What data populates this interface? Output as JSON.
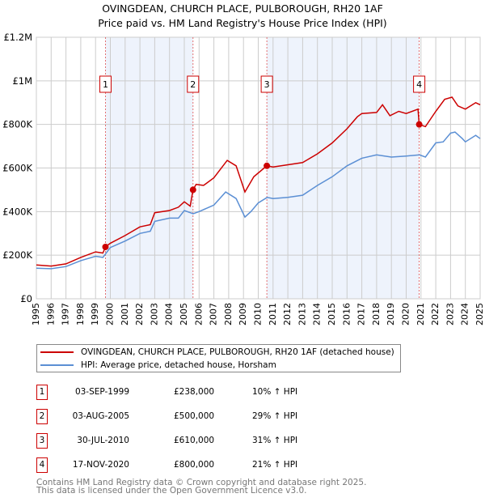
{
  "chart_data": {
    "type": "line",
    "title": "OVINGDEAN, CHURCH PLACE, PULBOROUGH, RH20 1AF",
    "subtitle": "Price paid vs. HM Land Registry's House Price Index (HPI)",
    "xlim": [
      1995,
      2025
    ],
    "ylim": [
      0,
      1200000
    ],
    "grid": true,
    "x_ticks": [
      "1995",
      "1996",
      "1997",
      "1998",
      "1999",
      "2000",
      "2001",
      "2002",
      "2003",
      "2004",
      "2005",
      "2006",
      "2007",
      "2008",
      "2009",
      "2010",
      "2011",
      "2012",
      "2013",
      "2014",
      "2015",
      "2016",
      "2017",
      "2018",
      "2019",
      "2020",
      "2021",
      "2022",
      "2023",
      "2024",
      "2025"
    ],
    "y_ticks": [
      {
        "value": 0,
        "label": "£0"
      },
      {
        "value": 200000,
        "label": "£200K"
      },
      {
        "value": 400000,
        "label": "£400K"
      },
      {
        "value": 600000,
        "label": "£600K"
      },
      {
        "value": 800000,
        "label": "£800K"
      },
      {
        "value": 1000000,
        "label": "£1M"
      },
      {
        "value": 1200000,
        "label": "£1.2M"
      }
    ],
    "shaded_ranges": [
      [
        1999.67,
        2005.59
      ],
      [
        2010.58,
        2020.88
      ]
    ],
    "series": [
      {
        "name": "OVINGDEAN, CHURCH PLACE, PULBOROUGH, RH20 1AF (detached house)",
        "color": "#cc0000",
        "x": [
          1995,
          1996,
          1997,
          1998,
          1999,
          1999.5,
          1999.67,
          2000,
          2001,
          2002,
          2002.7,
          2003,
          2004,
          2004.6,
          2005,
          2005.4,
          2005.59,
          2005.8,
          2006.3,
          2007,
          2007.9,
          2008.5,
          2009.1,
          2009.7,
          2010.4,
          2010.58,
          2011,
          2012,
          2013,
          2014,
          2015,
          2016,
          2016.7,
          2017,
          2018,
          2018.4,
          2018.9,
          2019.5,
          2020,
          2020.8,
          2020.88,
          2021.3,
          2022,
          2022.6,
          2023.1,
          2023.5,
          2024,
          2024.7,
          2025
        ],
        "y": [
          155000,
          150000,
          160000,
          190000,
          215000,
          210000,
          238000,
          255000,
          290000,
          330000,
          340000,
          395000,
          405000,
          420000,
          445000,
          425000,
          500000,
          525000,
          520000,
          555000,
          635000,
          610000,
          490000,
          560000,
          600000,
          610000,
          605000,
          615000,
          625000,
          665000,
          715000,
          780000,
          835000,
          850000,
          855000,
          890000,
          840000,
          860000,
          850000,
          870000,
          800000,
          790000,
          860000,
          915000,
          925000,
          885000,
          870000,
          900000,
          890000
        ]
      },
      {
        "name": "HPI: Average price, detached house, Horsham",
        "color": "#5b8fd4",
        "x": [
          1995,
          1996,
          1997,
          1998,
          1999,
          1999.5,
          2000,
          2001,
          2002,
          2002.7,
          2003,
          2004,
          2004.6,
          2005,
          2005.6,
          2006,
          2007,
          2007.8,
          2008.5,
          2009.1,
          2009.5,
          2010,
          2010.6,
          2011,
          2012,
          2013,
          2014,
          2015,
          2016,
          2017,
          2018,
          2019,
          2020,
          2020.9,
          2021.3,
          2022,
          2022.5,
          2023,
          2023.3,
          2023.8,
          2024,
          2024.7,
          2025
        ],
        "y": [
          140000,
          138000,
          148000,
          175000,
          195000,
          190000,
          235000,
          265000,
          300000,
          310000,
          355000,
          370000,
          370000,
          405000,
          390000,
          400000,
          430000,
          490000,
          460000,
          375000,
          400000,
          440000,
          465000,
          460000,
          465000,
          475000,
          520000,
          560000,
          610000,
          645000,
          660000,
          650000,
          655000,
          660000,
          650000,
          715000,
          720000,
          760000,
          765000,
          735000,
          720000,
          750000,
          735000
        ]
      }
    ],
    "sales": [
      {
        "id": "1",
        "x": 1999.67,
        "y": 238000,
        "date": "03-SEP-1999",
        "price": "£238,000",
        "hpi": "10% ↑ HPI"
      },
      {
        "id": "2",
        "x": 2005.59,
        "y": 500000,
        "date": "03-AUG-2005",
        "price": "£500,000",
        "hpi": "29% ↑ HPI"
      },
      {
        "id": "3",
        "x": 2010.58,
        "y": 610000,
        "date": "30-JUL-2010",
        "price": "£610,000",
        "hpi": "31% ↑ HPI"
      },
      {
        "id": "4",
        "x": 2020.88,
        "y": 800000,
        "date": "17-NOV-2020",
        "price": "£800,000",
        "hpi": "21% ↑ HPI"
      }
    ]
  },
  "footer": {
    "line1": "Contains HM Land Registry data © Crown copyright and database right 2025.",
    "line2": "This data is licensed under the Open Government Licence v3.0."
  }
}
